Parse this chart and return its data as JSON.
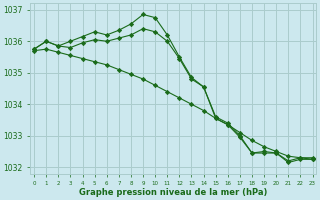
{
  "title": "Graphe pression niveau de la mer (hPa)",
  "background_color": "#cce8ee",
  "grid_color": "#aacccc",
  "line_color": "#1a6b1a",
  "text_color": "#1a6b1a",
  "x_values": [
    0,
    1,
    2,
    3,
    4,
    5,
    6,
    7,
    8,
    9,
    10,
    11,
    12,
    13,
    14,
    15,
    16,
    17,
    18,
    19,
    20,
    21,
    22,
    23
  ],
  "line1": [
    1035.75,
    1036.0,
    1035.85,
    1036.0,
    1036.15,
    1036.3,
    1036.2,
    1036.35,
    1036.55,
    1036.85,
    1036.75,
    1036.2,
    1035.5,
    1034.85,
    1034.55,
    1033.6,
    1033.4,
    1033.0,
    1032.45,
    1032.5,
    1032.45,
    1032.2,
    1032.3,
    1032.3
  ],
  "line2": [
    1035.75,
    1036.0,
    1035.85,
    1035.8,
    1035.95,
    1036.05,
    1036.0,
    1036.1,
    1036.2,
    1036.4,
    1036.3,
    1036.0,
    1035.45,
    1034.8,
    1034.55,
    1033.55,
    1033.35,
    1032.95,
    1032.45,
    1032.45,
    1032.45,
    1032.15,
    1032.25,
    1032.25
  ],
  "line3": [
    1035.7,
    1035.75,
    1035.65,
    1035.55,
    1035.45,
    1035.35,
    1035.25,
    1035.1,
    1034.95,
    1034.8,
    1034.6,
    1034.4,
    1034.2,
    1034.0,
    1033.8,
    1033.55,
    1033.35,
    1033.1,
    1032.85,
    1032.65,
    1032.5,
    1032.35,
    1032.3,
    1032.25
  ],
  "ylim": [
    1031.8,
    1037.2
  ],
  "yticks": [
    1032,
    1033,
    1034,
    1035,
    1036,
    1037
  ],
  "xlim": [
    -0.3,
    23.3
  ],
  "xticks": [
    0,
    1,
    2,
    3,
    4,
    5,
    6,
    7,
    8,
    9,
    10,
    11,
    12,
    13,
    14,
    15,
    16,
    17,
    18,
    19,
    20,
    21,
    22,
    23
  ]
}
